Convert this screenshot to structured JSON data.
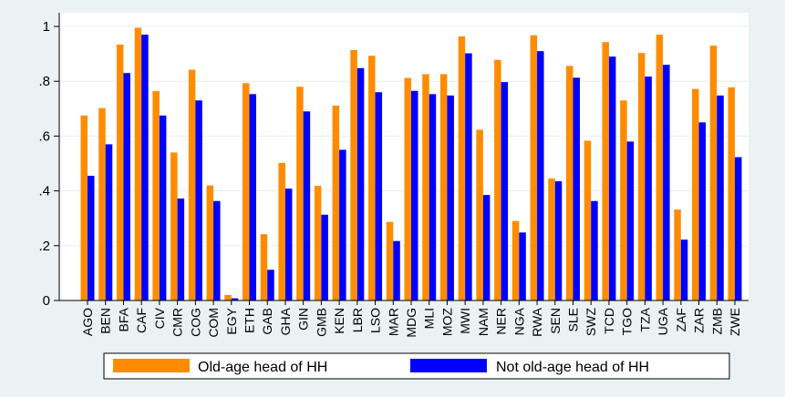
{
  "chart_data": {
    "type": "bar",
    "categories": [
      "AGO",
      "BEN",
      "BFA",
      "CAF",
      "CIV",
      "CMR",
      "COG",
      "COM",
      "EGY",
      "ETH",
      "GAB",
      "GHA",
      "GIN",
      "GMB",
      "KEN",
      "LBR",
      "LSO",
      "MAR",
      "MDG",
      "MLI",
      "MOZ",
      "MWI",
      "NAM",
      "NER",
      "NGA",
      "RWA",
      "SEN",
      "SLE",
      "SWZ",
      "TCD",
      "TGO",
      "TZA",
      "UGA",
      "ZAF",
      "ZAR",
      "ZMB",
      "ZWE"
    ],
    "series": [
      {
        "name": "Old-age head of HH",
        "color": "#ff8c00",
        "values": [
          0.675,
          0.702,
          0.934,
          0.995,
          0.764,
          0.54,
          0.842,
          0.42,
          0.02,
          0.793,
          0.242,
          0.502,
          0.78,
          0.418,
          0.711,
          0.914,
          0.893,
          0.287,
          0.812,
          0.826,
          0.826,
          0.964,
          0.623,
          0.878,
          0.29,
          0.968,
          0.445,
          0.856,
          0.583,
          0.943,
          0.73,
          0.903,
          0.97,
          0.332,
          0.772,
          0.93,
          0.778
        ]
      },
      {
        "name": "Not old-age head of HH",
        "color": "#0000ff",
        "values": [
          0.455,
          0.57,
          0.83,
          0.97,
          0.675,
          0.372,
          0.73,
          0.363,
          0.008,
          0.753,
          0.112,
          0.408,
          0.69,
          0.313,
          0.55,
          0.848,
          0.76,
          0.217,
          0.765,
          0.753,
          0.748,
          0.902,
          0.385,
          0.797,
          0.248,
          0.91,
          0.435,
          0.813,
          0.363,
          0.89,
          0.58,
          0.817,
          0.86,
          0.222,
          0.65,
          0.748,
          0.523
        ]
      }
    ],
    "yticks": [
      "0",
      ".2",
      ".4",
      ".6",
      ".8",
      "1"
    ],
    "ylim": [
      0,
      1.05
    ],
    "grid": true,
    "legend_position": "bottom"
  }
}
